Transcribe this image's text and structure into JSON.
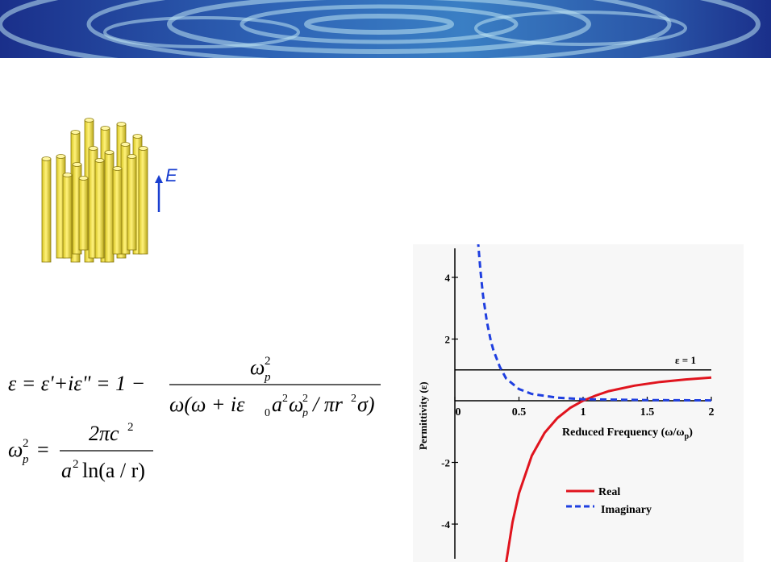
{
  "banner": {
    "colors": [
      "#1a2f8a",
      "#3a7fc4",
      "#bde3f3"
    ]
  },
  "rod_figure": {
    "field_label": "E",
    "arrow_color": "#1a3fd0",
    "rod_color": "#f2e23a"
  },
  "equations": {
    "eq1": {
      "lhs": "ε = ε'+iε\" = 1 −",
      "numerator": "ω",
      "numerator_sub": "p",
      "numerator_sup": "2",
      "denominator": "ω(ω + iε",
      "denominator_rest": "a",
      "denominator_tail": "ω",
      "denominator_end": "/ πr",
      "denominator_final": "σ)"
    },
    "eq2": {
      "lhs": "ω",
      "lhs_sub": "p",
      "lhs_sup": "2",
      "eq": "=",
      "numerator": "2πc",
      "numerator_sup": "2",
      "denominator": "a",
      "denominator_sup": "2",
      "denominator_tail": "ln(a / r)"
    }
  },
  "chart_data": {
    "type": "line",
    "xlabel": "Reduced Frequency (ω/ω",
    "xlabel_sub": "p",
    "xlabel_end": ")",
    "ylabel": "Permittivity (ε)",
    "x_ticks": [
      "0",
      "0.5",
      "1",
      "1.5",
      "2"
    ],
    "y_ticks": [
      "4",
      "2",
      "-2",
      "-4"
    ],
    "xlim": [
      0,
      2
    ],
    "ylim": [
      -5,
      5
    ],
    "reference_line": {
      "y": 1,
      "label": "ε = 1",
      "color": "#000000"
    },
    "series": [
      {
        "name": "Real",
        "color": "#e0141e",
        "style": "solid",
        "x": [
          0.4,
          0.45,
          0.5,
          0.6,
          0.7,
          0.8,
          0.9,
          1.0,
          1.1,
          1.2,
          1.4,
          1.6,
          1.8,
          2.0
        ],
        "y": [
          -5.25,
          -3.94,
          -3.0,
          -1.78,
          -1.04,
          -0.56,
          -0.23,
          0.0,
          0.17,
          0.31,
          0.49,
          0.61,
          0.69,
          0.75
        ]
      },
      {
        "name": "Imaginary",
        "color": "#1f3fe0",
        "style": "dashed",
        "x": [
          0.18,
          0.2,
          0.22,
          0.25,
          0.28,
          0.3,
          0.35,
          0.4,
          0.5,
          0.6,
          0.8,
          1.0,
          1.5,
          2.0
        ],
        "y": [
          5.2,
          4.2,
          3.4,
          2.55,
          1.95,
          1.65,
          1.1,
          0.72,
          0.38,
          0.22,
          0.1,
          0.05,
          0.02,
          0.01
        ]
      }
    ],
    "legend": {
      "placement": "bottom-right",
      "entries": [
        "Real",
        "Imaginary"
      ]
    }
  }
}
